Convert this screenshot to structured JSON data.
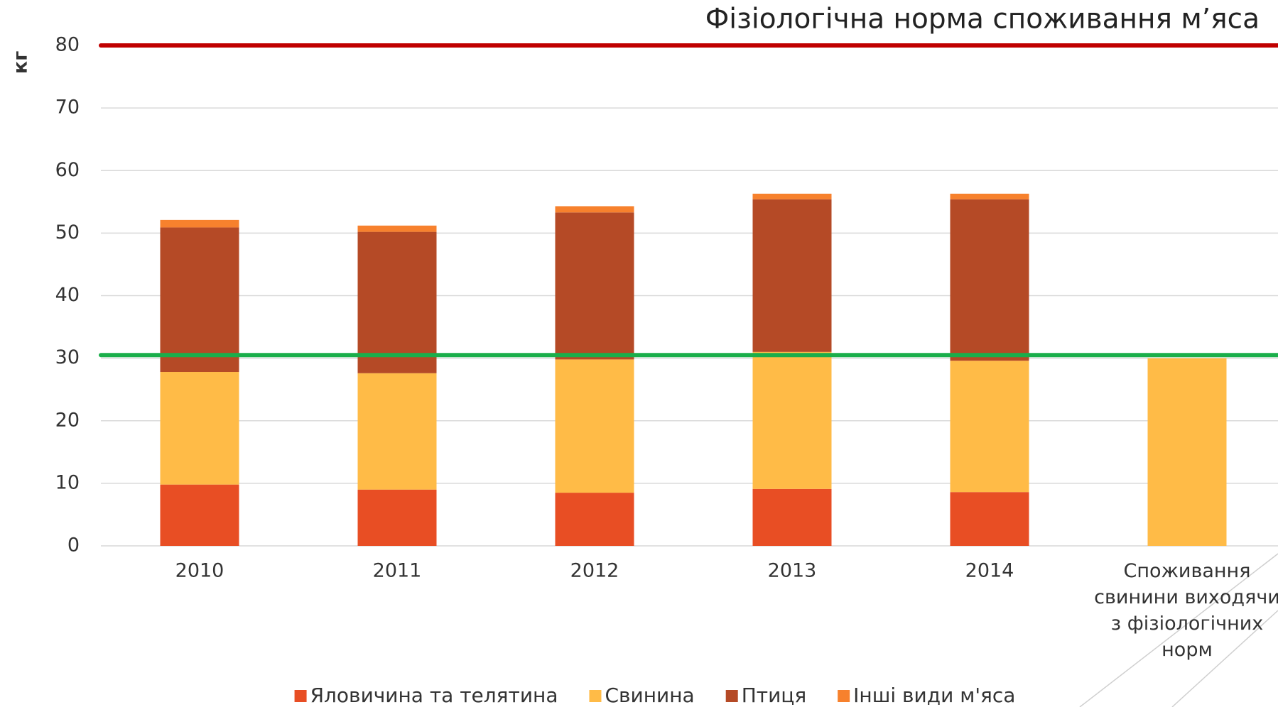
{
  "chart_data": {
    "type": "bar",
    "stacked": true,
    "title": "Фізіологічна норма споживання м’яса",
    "y_label": "кг",
    "categories": [
      "2010",
      "2011",
      "2012",
      "2013",
      "2014",
      "Споживання свинини виходячи з фізіологічних норм"
    ],
    "series": [
      {
        "name": "Яловичина та телятина",
        "color": "#e84e24",
        "values": [
          9.8,
          9.0,
          8.5,
          9.1,
          8.6,
          null
        ]
      },
      {
        "name": "Свинина",
        "color": "#ffbb47",
        "values": [
          18.0,
          18.6,
          21.3,
          21.9,
          21.0,
          30.0
        ]
      },
      {
        "name": "Птиця",
        "color": "#b54a26",
        "values": [
          23.1,
          22.6,
          23.5,
          24.4,
          25.8,
          null
        ]
      },
      {
        "name": "Інші види м'яса",
        "color": "#f7812d",
        "values": [
          1.2,
          1.0,
          1.0,
          0.9,
          0.9,
          null
        ]
      }
    ],
    "reference_lines": [
      {
        "value": 80,
        "color": "#c00000"
      },
      {
        "value": 30.5,
        "color": "#1aae4a"
      }
    ],
    "ylim": [
      0,
      80
    ],
    "yticks": [
      0,
      10,
      20,
      30,
      40,
      50,
      60,
      70,
      80
    ],
    "grid": true,
    "legend": "bottom"
  }
}
